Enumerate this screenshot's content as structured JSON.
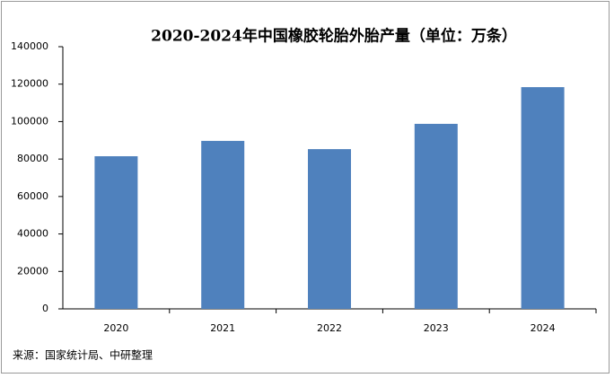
{
  "chart_data": {
    "type": "bar",
    "title": "2020-2024年中国橡胶轮胎外胎产量（单位：万条）",
    "categories": [
      "2020",
      "2021",
      "2022",
      "2023",
      "2024"
    ],
    "values": [
      81500,
      89700,
      85300,
      98800,
      118400
    ],
    "color": "#4f81bd",
    "ylim": [
      0,
      140000
    ],
    "yticks": [
      0,
      20000,
      40000,
      60000,
      80000,
      100000,
      120000,
      140000
    ],
    "grid": false,
    "source": "来源：国家统计局、中研整理"
  }
}
